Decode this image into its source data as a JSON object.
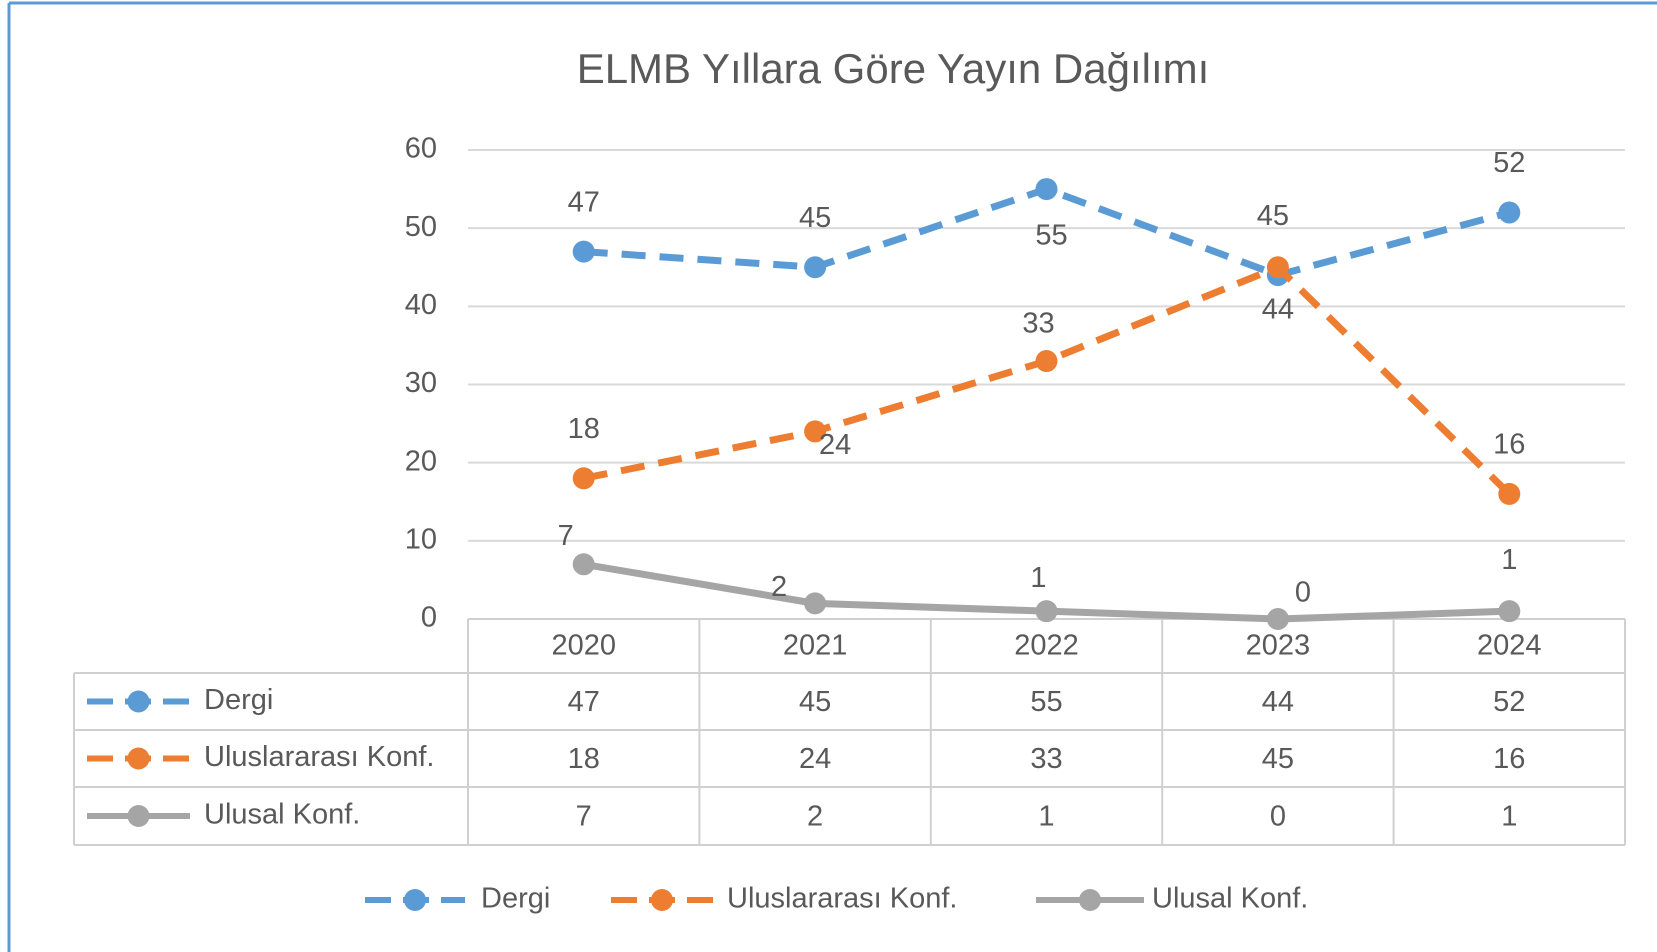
{
  "chart_data": {
    "type": "line",
    "title": "ELMB Yıllara Göre Yayın Dağılımı",
    "categories": [
      "2020",
      "2021",
      "2022",
      "2023",
      "2024"
    ],
    "series": [
      {
        "name": "Dergi",
        "color": "#5b9bd5",
        "style": "dashed",
        "values": [
          47,
          45,
          55,
          44,
          52
        ]
      },
      {
        "name": "Uluslararası Konf.",
        "color": "#ed7d31",
        "style": "dashed",
        "values": [
          18,
          24,
          33,
          45,
          16
        ]
      },
      {
        "name": "Ulusal Konf.",
        "color": "#a5a5a5",
        "style": "solid",
        "values": [
          7,
          2,
          1,
          0,
          1
        ]
      }
    ],
    "ylim": [
      0,
      60
    ],
    "yticks": [
      0,
      10,
      20,
      30,
      40,
      50,
      60
    ],
    "grid": true,
    "legend": "bottom",
    "data_table": true
  }
}
